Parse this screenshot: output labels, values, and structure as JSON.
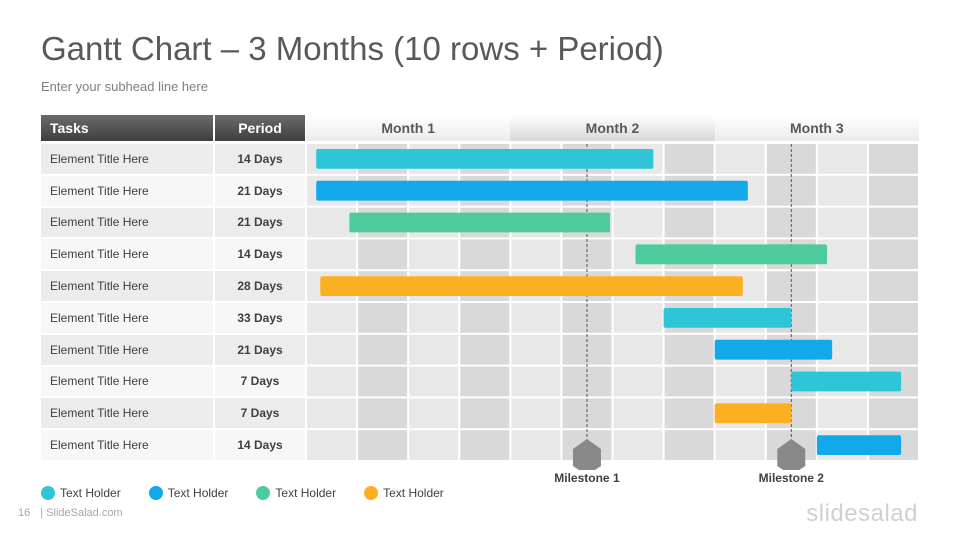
{
  "title": "Gantt Chart – 3 Months (10 rows + Period)",
  "subhead": "Enter your subhead  line here",
  "header": {
    "tasks": "Tasks",
    "period": "Period",
    "months": [
      "Month 1",
      "Month 2",
      "Month 3"
    ]
  },
  "colors": {
    "cyan": "#2ec5d6",
    "blue": "#12a8ea",
    "green": "#4ecb9c",
    "orange": "#fbb022"
  },
  "rows": [
    {
      "task": "Element Title Here",
      "period": "14 Days"
    },
    {
      "task": "Element Title Here",
      "period": "21 Days"
    },
    {
      "task": "Element Title Here",
      "period": "21 Days"
    },
    {
      "task": "Element Title Here",
      "period": "14 Days"
    },
    {
      "task": "Element Title Here",
      "period": "28 Days"
    },
    {
      "task": "Element Title Here",
      "period": "33 Days"
    },
    {
      "task": "Element Title Here",
      "period": "21 Days"
    },
    {
      "task": "Element Title Here",
      "period": "7 Days"
    },
    {
      "task": "Element Title Here",
      "period": "7 Days"
    },
    {
      "task": "Element Title Here",
      "period": "14 Days"
    }
  ],
  "chart_data": {
    "type": "gantt",
    "columns_per_month": 4,
    "bars": [
      {
        "row": 0,
        "start": 0.2,
        "end": 6.8,
        "color": "cyan"
      },
      {
        "row": 1,
        "start": 0.2,
        "end": 8.65,
        "color": "blue"
      },
      {
        "row": 2,
        "start": 0.85,
        "end": 5.95,
        "color": "green"
      },
      {
        "row": 3,
        "start": 6.45,
        "end": 10.2,
        "color": "green"
      },
      {
        "row": 4,
        "start": 0.28,
        "end": 8.55,
        "color": "orange"
      },
      {
        "row": 5,
        "start": 7.0,
        "end": 9.5,
        "color": "cyan"
      },
      {
        "row": 6,
        "start": 8.0,
        "end": 10.3,
        "color": "blue"
      },
      {
        "row": 7,
        "start": 9.5,
        "end": 11.65,
        "color": "cyan"
      },
      {
        "row": 8,
        "start": 8.0,
        "end": 9.5,
        "color": "orange"
      },
      {
        "row": 9,
        "start": 10.0,
        "end": 11.65,
        "color": "blue"
      }
    ],
    "milestones": [
      {
        "label": "Milestone 1",
        "at": 5.5
      },
      {
        "label": "Milestone 2",
        "at": 9.5
      }
    ]
  },
  "legend": [
    {
      "label": "Text Holder",
      "color": "cyan"
    },
    {
      "label": "Text Holder",
      "color": "blue"
    },
    {
      "label": "Text Holder",
      "color": "green"
    },
    {
      "label": "Text Holder",
      "color": "orange"
    }
  ],
  "footer": {
    "page": "16",
    "site": "| SlideSalad.com"
  },
  "brand": "slidesalad"
}
